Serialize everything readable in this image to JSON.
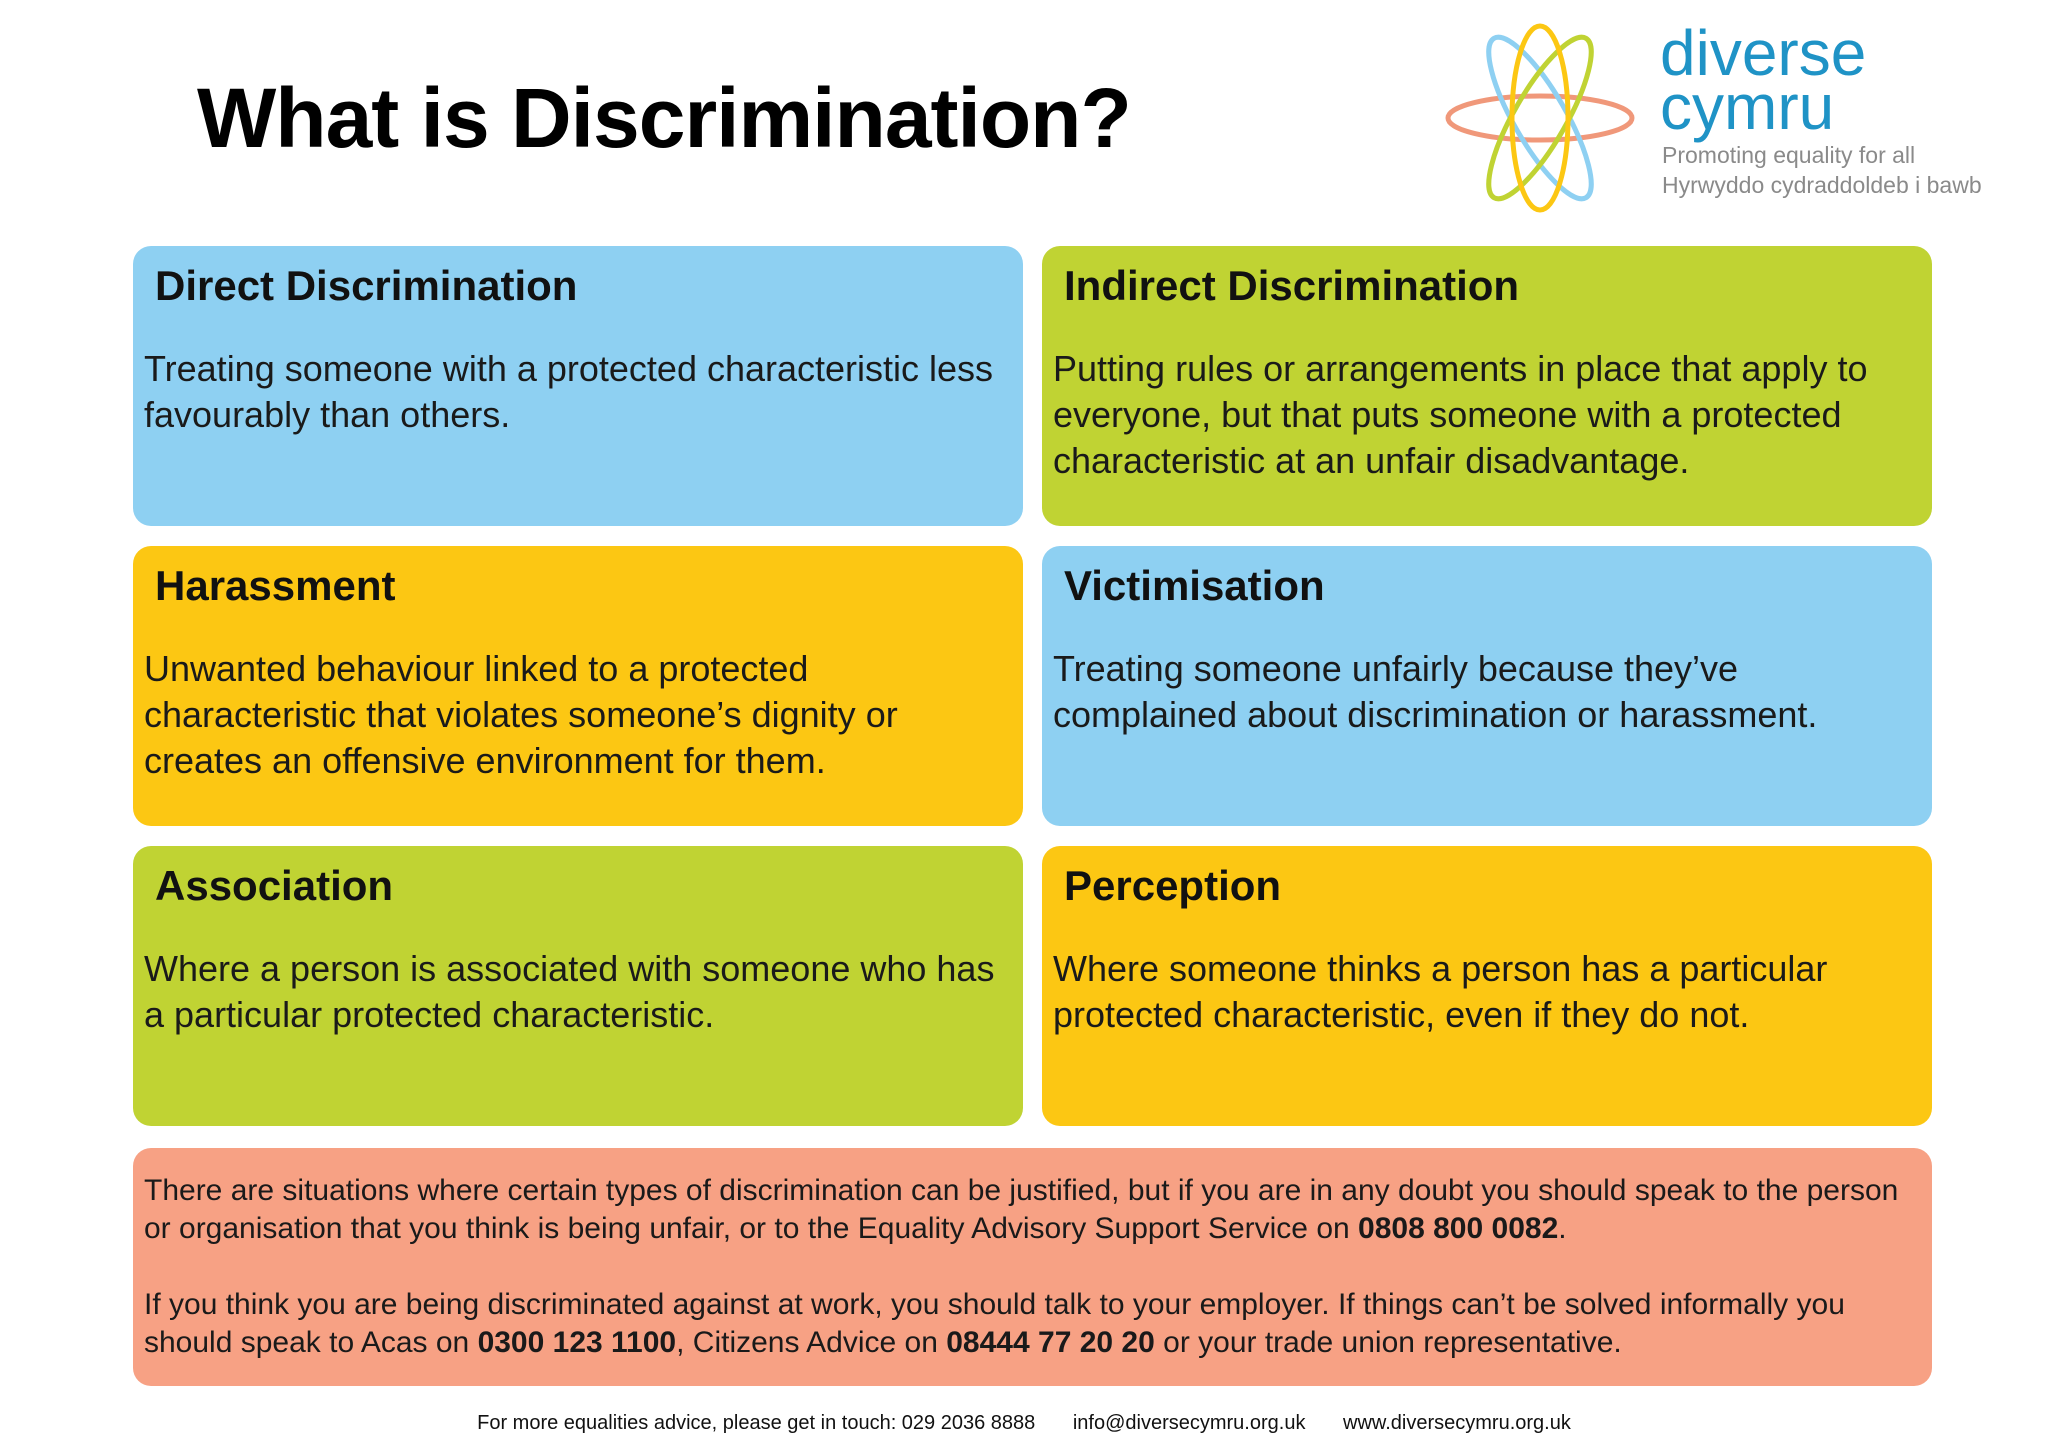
{
  "title": "What is Discrimination?",
  "logo": {
    "name_line1": "diverse",
    "name_line2": "cymru",
    "tagline_en": "Promoting equality for all",
    "tagline_cy": "Hyrwyddo cydraddoldeb i bawb"
  },
  "cards": [
    {
      "heading": "Direct Discrimination",
      "body": "Treating someone with a protected characteristic less favourably than others.",
      "color": "#8ed0f2"
    },
    {
      "heading": "Indirect Discrimination",
      "body": "Putting rules or arrangements in place that apply to everyone, but that puts someone with a protected characteristic at an unfair disadvantage.",
      "color": "#c0d333"
    },
    {
      "heading": "Harassment",
      "body": "Unwanted behaviour linked to a protected characteristic that violates someone’s dignity or creates an offensive environment for them.",
      "color": "#fcc713"
    },
    {
      "heading": "Victimisation",
      "body": "Treating someone unfairly because they’ve complained about discrimination or harassment.",
      "color": "#8ed0f2"
    },
    {
      "heading": "Association",
      "body": "Where a person is associated with someone who has a particular protected characteristic.",
      "color": "#c0d333"
    },
    {
      "heading": "Perception",
      "body": "Where someone thinks a person has a particular protected characteristic, even if they do not.",
      "color": "#fcc713"
    }
  ],
  "note": {
    "p1_text": "There are situations where certain types of discrimination can be justified, but if you are in any doubt you should speak to the person or organisation that you think is being unfair, or to the Equality Advisory Support Service on ",
    "p1_phone": "0808 800 0082",
    "p1_end": ".",
    "p2_text": "If you think you are being discriminated against at work, you should talk to your employer. If things can’t be solved informally you should speak to Acas on ",
    "p2_acas": "0300 123 1100",
    "p2_mid": ", Citizens Advice on ",
    "p2_ca": "08444 77 20 20",
    "p2_end": " or your trade union representative.",
    "color": "#f7a184"
  },
  "footer": {
    "advice": "For more equalities advice, please get in touch: 029 2036 8888",
    "email": "info@diversecymru.org.uk",
    "website": "www.diversecymru.org.uk"
  }
}
